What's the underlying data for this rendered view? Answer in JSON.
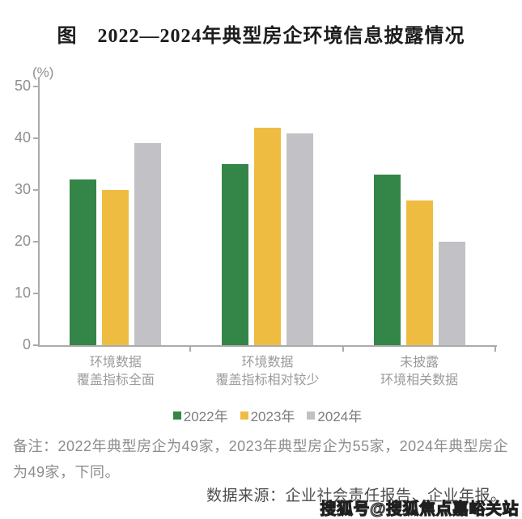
{
  "title": "图　2022—2024年典型房企环境信息披露情况",
  "chart_data": {
    "type": "bar",
    "title": "图 2022—2024年典型房企环境信息披露情况",
    "y_unit": "(%)",
    "ylabel": "",
    "xlabel": "",
    "ylim": [
      0,
      50
    ],
    "yticks": [
      0,
      10,
      20,
      30,
      40,
      50
    ],
    "grid": false,
    "legend_position": "bottom",
    "categories": [
      {
        "line1": "环境数据",
        "line2": "覆盖指标全面"
      },
      {
        "line1": "环境数据",
        "line2": "覆盖指标相对较少"
      },
      {
        "line1": "未披露",
        "line2": "环境相关数据"
      }
    ],
    "series": [
      {
        "name": "2022年",
        "color": "#348648",
        "values": [
          32,
          35,
          33
        ]
      },
      {
        "name": "2023年",
        "color": "#EFBC42",
        "values": [
          30,
          42,
          28
        ]
      },
      {
        "name": "2024年",
        "color": "#C2C2C6",
        "values": [
          39,
          41,
          20
        ]
      }
    ]
  },
  "footnote": "备注：2022年典型房企为49家，2023年典型房企为55家，2024年典型房企为49家，下同。",
  "source": "数据来源：企业社会责任报告、企业年报。",
  "watermark": "搜狐号@搜狐焦点嘉峪关站"
}
